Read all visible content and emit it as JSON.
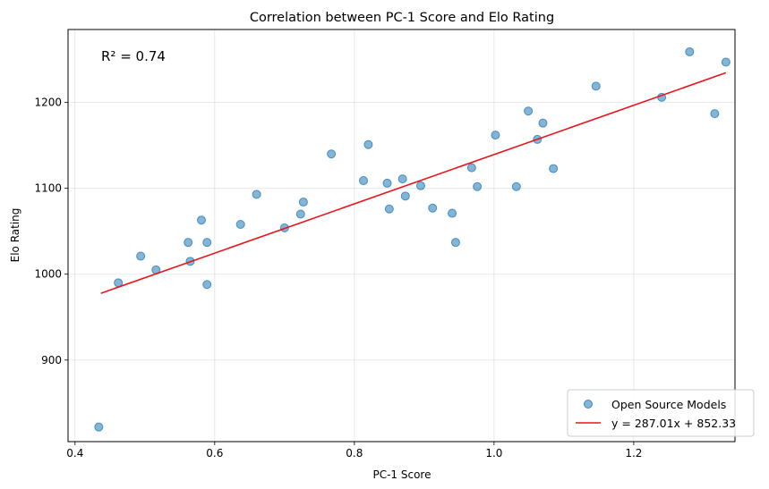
{
  "chart_data": {
    "type": "scatter",
    "title": "Correlation between PC-1 Score and Elo Rating",
    "xlabel": "PC-1 Score",
    "ylabel": "Elo Rating",
    "xlim": [
      0.39,
      1.345
    ],
    "ylim": [
      805,
      1285
    ],
    "xticks": [
      0.4,
      0.6,
      0.8,
      1.0,
      1.2
    ],
    "xtick_labels": [
      "0.4",
      "0.6",
      "0.8",
      "1.0",
      "1.2"
    ],
    "yticks": [
      900,
      1000,
      1100,
      1200
    ],
    "ytick_labels": [
      "900",
      "1000",
      "1100",
      "1200"
    ],
    "grid": true,
    "legend_position": "lower-right",
    "annotation": "R² = 0.74",
    "series": [
      {
        "name": "Open Source Models",
        "kind": "scatter",
        "color": "#1f77b4",
        "points": [
          [
            0.434,
            822
          ],
          [
            0.462,
            990
          ],
          [
            0.494,
            1021
          ],
          [
            0.516,
            1005
          ],
          [
            0.562,
            1037
          ],
          [
            0.565,
            1015
          ],
          [
            0.581,
            1063
          ],
          [
            0.589,
            1037
          ],
          [
            0.589,
            988
          ],
          [
            0.637,
            1058
          ],
          [
            0.66,
            1093
          ],
          [
            0.7,
            1054
          ],
          [
            0.723,
            1070
          ],
          [
            0.727,
            1084
          ],
          [
            0.767,
            1140
          ],
          [
            0.813,
            1109
          ],
          [
            0.82,
            1151
          ],
          [
            0.847,
            1106
          ],
          [
            0.85,
            1076
          ],
          [
            0.869,
            1111
          ],
          [
            0.873,
            1091
          ],
          [
            0.895,
            1103
          ],
          [
            0.912,
            1077
          ],
          [
            0.94,
            1071
          ],
          [
            0.945,
            1037
          ],
          [
            0.968,
            1124
          ],
          [
            0.976,
            1102
          ],
          [
            1.002,
            1162
          ],
          [
            1.032,
            1102
          ],
          [
            1.049,
            1190
          ],
          [
            1.062,
            1157
          ],
          [
            1.07,
            1176
          ],
          [
            1.085,
            1123
          ],
          [
            1.146,
            1219
          ],
          [
            1.24,
            1206
          ],
          [
            1.28,
            1259
          ],
          [
            1.316,
            1187
          ],
          [
            1.332,
            1247
          ]
        ]
      },
      {
        "name": "y = 287.01x + 852.33",
        "kind": "line",
        "color": "#e8141b",
        "slope": 287.01,
        "intercept": 852.33,
        "x_range": [
          0.437,
          1.332
        ]
      }
    ]
  }
}
